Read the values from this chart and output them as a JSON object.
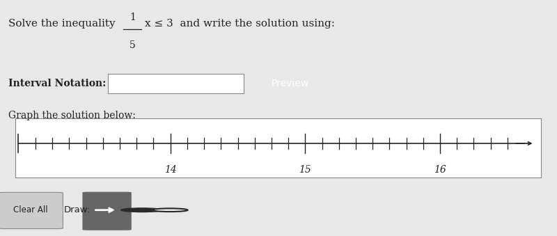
{
  "bg_color": "#e8e8e8",
  "white": "#ffffff",
  "dark": "#222222",
  "medium_gray": "#888888",
  "preview_bg": "#808080",
  "preview_text": "#ffffff",
  "button_bg": "#cccccc",
  "title_pre": "Solve the inequality ",
  "fraction_num": "1",
  "fraction_den": "5",
  "title_post": "x ≤ 3  and write the solution using:",
  "interval_label": "Interval Notation:",
  "graph_label": "Graph the solution below:",
  "preview_label": "Preview",
  "clear_label": "Clear All",
  "draw_label": "Draw:",
  "number_line_ticks_minor": [
    13.0,
    13.125,
    13.25,
    13.375,
    13.5,
    13.625,
    13.75,
    13.875,
    14.125,
    14.25,
    14.375,
    14.5,
    14.625,
    14.75,
    14.875,
    15.125,
    15.25,
    15.375,
    15.5,
    15.625,
    15.75,
    15.875,
    16.125,
    16.25,
    16.375,
    16.5
  ],
  "number_line_ticks_major": [
    14.0,
    15.0,
    16.0
  ],
  "number_line_labels": [
    "14",
    "15",
    "16"
  ],
  "xmin": 12.85,
  "xmax": 16.75,
  "fontsize_title": 11,
  "fontsize_label": 10,
  "fontsize_axis": 10,
  "fontsize_small": 8
}
